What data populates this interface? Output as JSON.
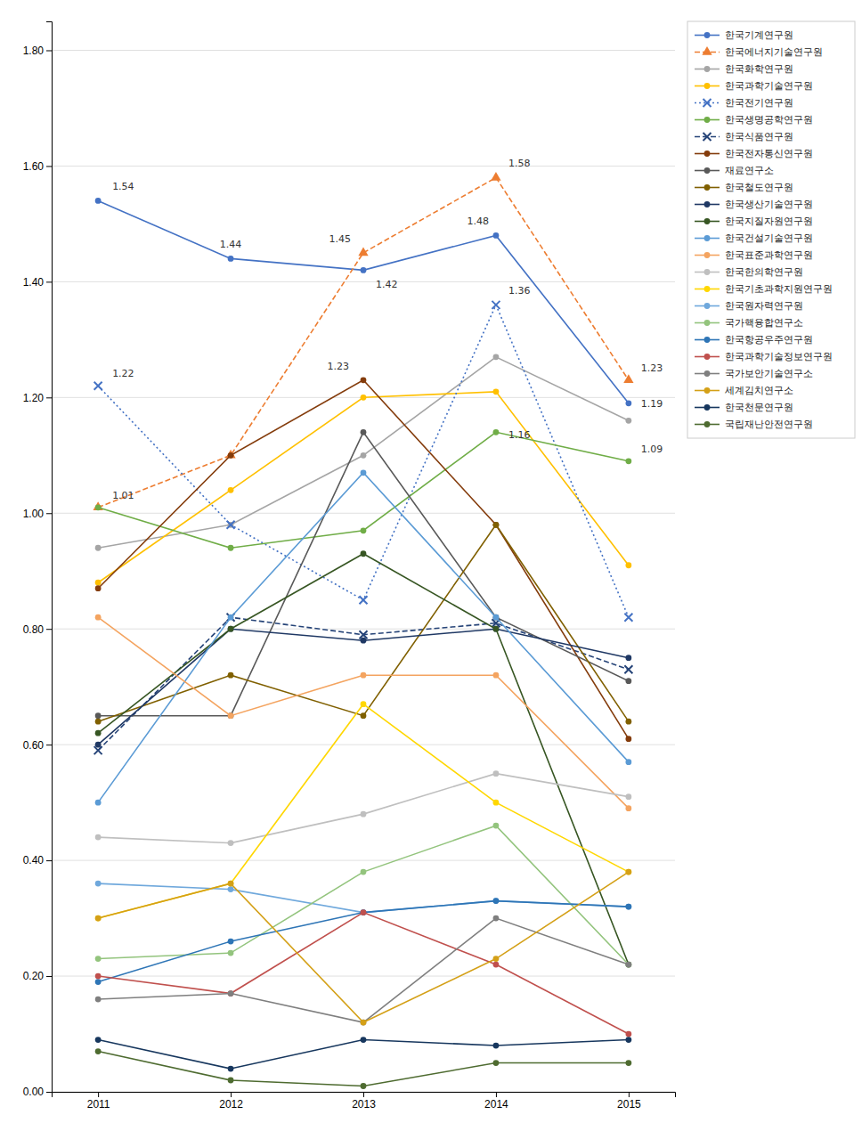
{
  "chart_data": {
    "type": "line",
    "categories": [
      "2011",
      "2012",
      "2013",
      "2014",
      "2015"
    ],
    "series": [
      {
        "name": "한국기계연구원",
        "color": "#4472C4",
        "line_style": "solid",
        "marker": "o",
        "values": [
          1.54,
          1.44,
          1.42,
          1.48,
          1.19
        ]
      },
      {
        "name": "한국에너지기술연구원",
        "color": "#ED7D31",
        "line_style": "dashed",
        "marker": "^",
        "values": [
          1.01,
          1.1,
          1.45,
          1.58,
          1.23
        ]
      },
      {
        "name": "한국화학연구원",
        "color": "#A5A5A5",
        "line_style": "solid",
        "marker": "o",
        "values": [
          0.94,
          0.98,
          1.1,
          1.27,
          1.16
        ]
      },
      {
        "name": "한국과학기술연구원",
        "color": "#FFC000",
        "line_style": "solid",
        "marker": "o",
        "values": [
          0.88,
          1.04,
          1.2,
          1.21,
          0.91
        ]
      },
      {
        "name": "한국전기연구원",
        "color": "#4472C4",
        "line_style": "dotted",
        "marker": "x",
        "values": [
          1.22,
          0.98,
          0.85,
          1.36,
          0.82
        ]
      },
      {
        "name": "한국생명공학연구원",
        "color": "#70AD47",
        "line_style": "solid",
        "marker": "o",
        "values": [
          1.01,
          0.94,
          0.97,
          1.14,
          1.09
        ]
      },
      {
        "name": "한국식품연구원",
        "color": "#264478",
        "line_style": "dashed",
        "marker": "x",
        "values": [
          0.59,
          0.82,
          0.79,
          0.81,
          0.73
        ]
      },
      {
        "name": "한국전자통신연구원",
        "color": "#843C0C",
        "line_style": "solid",
        "marker": "o",
        "values": [
          0.87,
          1.1,
          1.23,
          0.98,
          0.61
        ]
      },
      {
        "name": "재료연구소",
        "color": "#595959",
        "line_style": "solid",
        "marker": "o",
        "values": [
          0.65,
          0.65,
          1.14,
          0.82,
          0.71
        ]
      },
      {
        "name": "한국철도연구원",
        "color": "#806000",
        "line_style": "solid",
        "marker": "o",
        "values": [
          0.64,
          0.72,
          0.65,
          0.98,
          0.64
        ]
      },
      {
        "name": "한국생산기술연구원",
        "color": "#1F3864",
        "line_style": "solid",
        "marker": "o",
        "values": [
          0.6,
          0.8,
          0.78,
          0.8,
          0.75
        ]
      },
      {
        "name": "한국지질자원연구원",
        "color": "#375623",
        "line_style": "solid",
        "marker": "o",
        "values": [
          0.62,
          0.8,
          0.93,
          0.8,
          0.22
        ]
      },
      {
        "name": "한국건설기술연구원",
        "color": "#5B9BD5",
        "line_style": "solid",
        "marker": "o",
        "values": [
          0.5,
          0.82,
          1.07,
          0.82,
          0.57
        ]
      },
      {
        "name": "한국표준과학연구원",
        "color": "#F4A460",
        "line_style": "solid",
        "marker": "o",
        "values": [
          0.82,
          0.65,
          0.72,
          0.72,
          0.49
        ]
      },
      {
        "name": "한국한의학연구원",
        "color": "#BFBFBF",
        "line_style": "solid",
        "marker": "o",
        "values": [
          0.44,
          0.43,
          0.48,
          0.55,
          0.51
        ]
      },
      {
        "name": "한국기초과학지원연구원",
        "color": "#FFD700",
        "line_style": "solid",
        "marker": "o",
        "values": [
          0.3,
          0.36,
          0.67,
          0.5,
          0.38
        ]
      },
      {
        "name": "한국원자력연구원",
        "color": "#6FA8DC",
        "line_style": "solid",
        "marker": "o",
        "values": [
          0.36,
          0.35,
          0.31,
          0.33,
          0.32
        ]
      },
      {
        "name": "국가핵융합연구소",
        "color": "#93C47D",
        "line_style": "solid",
        "marker": "o",
        "values": [
          0.23,
          0.24,
          0.38,
          0.46,
          0.22
        ]
      },
      {
        "name": "한국항공우주연구원",
        "color": "#2E75B6",
        "line_style": "solid",
        "marker": "o",
        "values": [
          0.19,
          0.26,
          0.31,
          0.33,
          0.32
        ]
      },
      {
        "name": "한국과학기술정보연구원",
        "color": "#C0504D",
        "line_style": "solid",
        "marker": "o",
        "values": [
          0.2,
          0.17,
          0.31,
          0.22,
          0.1
        ]
      },
      {
        "name": "국가보안기술연구소",
        "color": "#7F7F7F",
        "line_style": "solid",
        "marker": "o",
        "values": [
          0.16,
          0.17,
          0.12,
          0.3,
          0.22
        ]
      },
      {
        "name": "세계김치연구소",
        "color": "#D4A017",
        "line_style": "solid",
        "marker": "o",
        "values": [
          0.3,
          0.36,
          0.12,
          0.23,
          0.38
        ]
      },
      {
        "name": "한국천문연구원",
        "color": "#17375E",
        "line_style": "solid",
        "marker": "o",
        "values": [
          0.09,
          0.04,
          0.09,
          0.08,
          0.09
        ]
      },
      {
        "name": "국립재난안전연구원",
        "color": "#4E6B30",
        "line_style": "solid",
        "marker": "o",
        "values": [
          0.07,
          0.02,
          0.01,
          0.05,
          0.05
        ]
      }
    ],
    "annotations": [
      {
        "text": "1.54",
        "category": "2011",
        "value": 1.54
      },
      {
        "text": "1.44",
        "category": "2012",
        "value": 1.44
      },
      {
        "text": "1.42",
        "category": "2013",
        "value": 1.42
      },
      {
        "text": "1.45",
        "category": "2013",
        "value": 1.45
      },
      {
        "text": "1.23",
        "category": "2013",
        "value": 1.23
      },
      {
        "text": "1.48",
        "category": "2014",
        "value": 1.48
      },
      {
        "text": "1.58",
        "category": "2014",
        "value": 1.58
      },
      {
        "text": "1.36",
        "category": "2014",
        "value": 1.36
      },
      {
        "text": "1.16",
        "category": "2014",
        "value": 1.16
      },
      {
        "text": "1.23",
        "category": "2015",
        "value": 1.23
      },
      {
        "text": "1.19",
        "category": "2015",
        "value": 1.19
      },
      {
        "text": "1.09",
        "category": "2015",
        "value": 1.09
      },
      {
        "text": "1.22",
        "category": "2011",
        "value": 1.22
      },
      {
        "text": "1.01",
        "category": "2011",
        "value": 1.01
      }
    ],
    "ylim": [
      0.0,
      1.85
    ],
    "yticks": [
      {
        "value": 0.0,
        "label": "0.00"
      },
      {
        "value": 0.2,
        "label": "0.20"
      },
      {
        "value": 0.4,
        "label": "0.40"
      },
      {
        "value": 0.6,
        "label": "0.60"
      },
      {
        "value": 0.8,
        "label": "0.80"
      },
      {
        "value": 1.0,
        "label": "1.00"
      },
      {
        "value": 1.2,
        "label": "1.20"
      },
      {
        "value": 1.4,
        "label": "1.40"
      },
      {
        "value": 1.6,
        "label": "1.60"
      },
      {
        "value": 1.8,
        "label": "1.80"
      }
    ],
    "grid": true,
    "legend": "upper right"
  }
}
